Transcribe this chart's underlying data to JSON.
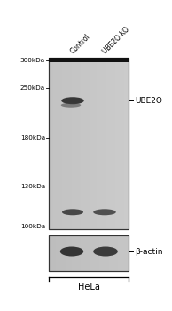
{
  "fig_width": 1.94,
  "fig_height": 3.5,
  "dpi": 100,
  "bg_color": "#ffffff",
  "gel_color": "#c0c0c0",
  "gel_bot_color": "#b8b8b8",
  "mw_labels": [
    "300kDa",
    "250kDa",
    "180kDa",
    "130kDa",
    "100kDa"
  ],
  "lane_labels": [
    "Control",
    "UBE2O KO"
  ],
  "ube2o_label": "UBE2O",
  "bactin_label": "β-actin",
  "hela_label": "HeLa",
  "band_dark": "#282828",
  "band_mid": "#404040",
  "band_light": "#606060"
}
